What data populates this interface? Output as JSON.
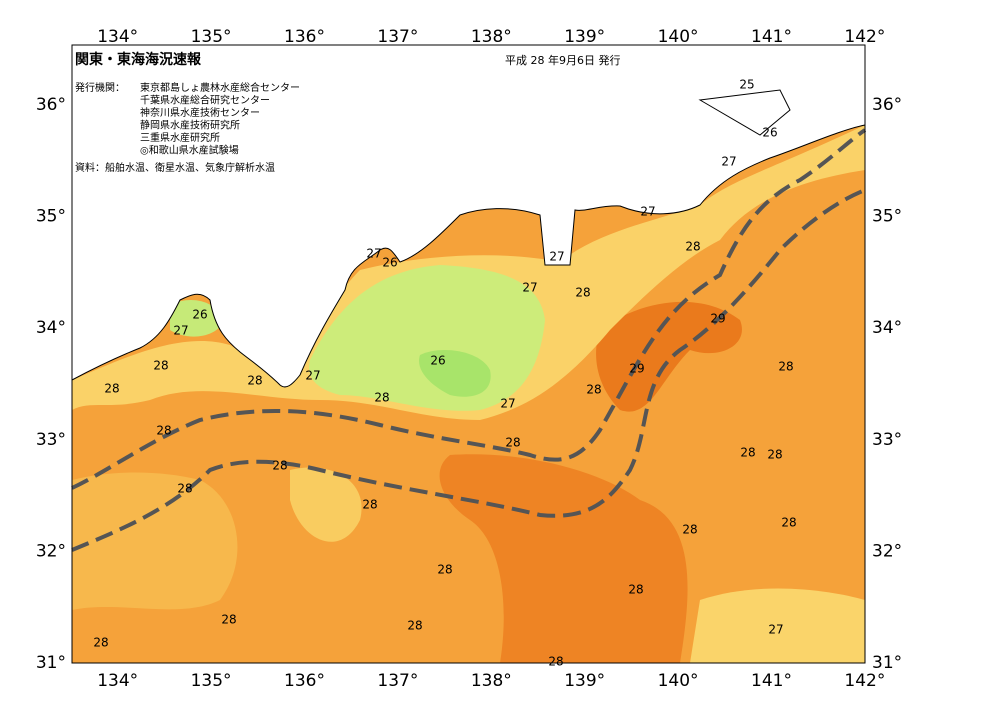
{
  "header": {
    "title": "関東・東海海況速報",
    "date": "平成 28 年9月6日 発行",
    "agencies_label": "発行機関：",
    "agencies": [
      "東京都島しょ農林水産総合センター",
      "千葉県水産総合研究センター",
      "神奈川県水産技術センター",
      "静岡県水産技術研究所",
      "三重県水産研究所",
      "◎和歌山県水産試験場"
    ],
    "source": "資料：船舶水温、衛星水温、気象庁解析水温"
  },
  "axes": {
    "lon_ticks": [
      {
        "value": 134,
        "label": "134°"
      },
      {
        "value": 135,
        "label": "135°"
      },
      {
        "value": 136,
        "label": "136°"
      },
      {
        "value": 137,
        "label": "137°"
      },
      {
        "value": 138,
        "label": "138°"
      },
      {
        "value": 139,
        "label": "139°"
      },
      {
        "value": 140,
        "label": "140°"
      },
      {
        "value": 141,
        "label": "141°"
      },
      {
        "value": 142,
        "label": "142°"
      }
    ],
    "lat_ticks": [
      {
        "value": 31,
        "label": "31°"
      },
      {
        "value": 32,
        "label": "32°"
      },
      {
        "value": 33,
        "label": "33°"
      },
      {
        "value": 34,
        "label": "34°"
      },
      {
        "value": 35,
        "label": "35°"
      },
      {
        "value": 36,
        "label": "36°"
      }
    ]
  },
  "contour_labels": [
    25,
    26,
    27,
    27,
    28,
    27,
    27,
    26,
    27,
    28,
    26,
    27,
    29,
    28,
    28,
    27,
    26,
    29,
    28,
    28,
    28,
    28,
    27,
    28,
    28,
    28,
    28,
    28,
    28,
    28,
    28,
    28,
    28,
    28,
    28,
    28,
    27,
    28,
    28
  ]
}
